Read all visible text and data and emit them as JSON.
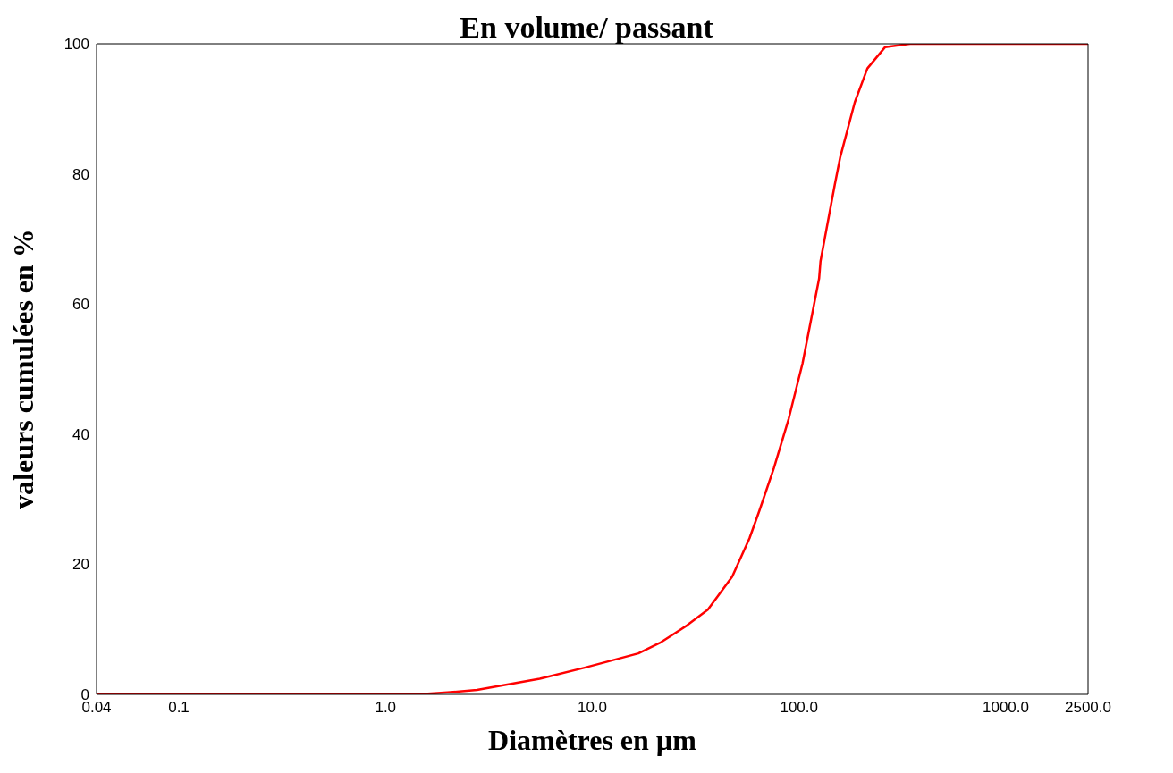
{
  "chart_data": {
    "type": "line",
    "title": "En volume/ passant",
    "xlabel": "Diamètres en µm",
    "ylabel": "valeurs cumulées en %",
    "log": "x",
    "xlim": [
      0.04,
      2500
    ],
    "ylim": [
      0,
      100
    ],
    "xticks": [
      {
        "value": 0.04,
        "label": "0.04"
      },
      {
        "value": 0.1,
        "label": "0.1"
      },
      {
        "value": 1,
        "label": "1.0"
      },
      {
        "value": 10,
        "label": "10.0"
      },
      {
        "value": 100,
        "label": "100.0"
      },
      {
        "value": 1000,
        "label": "1000.0"
      },
      {
        "value": 2500,
        "label": "2500.0"
      }
    ],
    "yticks": [
      0,
      20,
      40,
      60,
      80,
      100
    ],
    "grid": false,
    "legend": false,
    "marker": "none",
    "line_style": "solid",
    "series": [
      {
        "color": "#ff0000",
        "x": [
          0.04,
          1.0,
          1.43,
          1.99,
          2.77,
          5.57,
          9.18,
          16.7,
          21.2,
          28.7,
          36.2,
          47.5,
          57.6,
          64.4,
          75.6,
          89,
          104,
          125,
          127,
          149,
          158,
          186,
          214,
          261,
          345,
          2500
        ],
        "values": [
          0,
          0,
          0,
          0.3,
          0.7,
          2.4,
          4.1,
          6.3,
          7.9,
          10.6,
          13.0,
          18.1,
          24.0,
          28.3,
          34.8,
          42.3,
          50.9,
          63.9,
          66.6,
          78.4,
          82.5,
          91,
          96.2,
          99.5,
          100,
          100
        ]
      }
    ]
  }
}
